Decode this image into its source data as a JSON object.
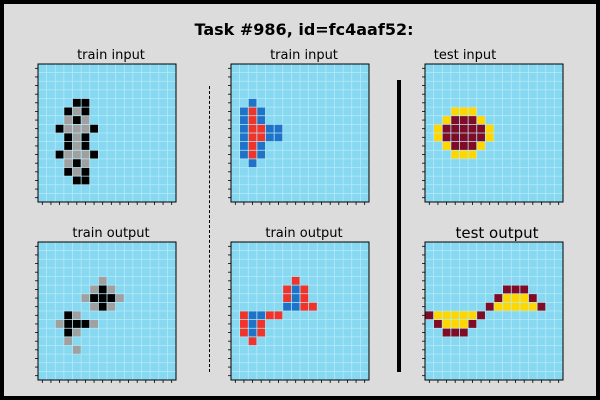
{
  "title": "Task #986, id=fc4aaf52:",
  "colors": {
    "bg": "#87d8f1",
    "gridline": "#b8e9f8",
    "palette": {
      "0": "#87d8f1",
      "1": "#1e73c8",
      "2": "#f0342b",
      "5": "#a0a0a0",
      "8": "#000000",
      "4": "#ffd700",
      "9": "#7f0b27"
    }
  },
  "panels": [
    {
      "label": "train input",
      "size": 16,
      "cells": [
        [
          4,
          4,
          8
        ],
        [
          4,
          5,
          8
        ],
        [
          5,
          3,
          8
        ],
        [
          5,
          4,
          5
        ],
        [
          5,
          5,
          8
        ],
        [
          6,
          3,
          5
        ],
        [
          6,
          4,
          8
        ],
        [
          6,
          5,
          5
        ],
        [
          7,
          2,
          8
        ],
        [
          7,
          3,
          5
        ],
        [
          7,
          4,
          5
        ],
        [
          7,
          5,
          5
        ],
        [
          7,
          6,
          8
        ],
        [
          8,
          3,
          8
        ],
        [
          8,
          4,
          5
        ],
        [
          8,
          5,
          8
        ],
        [
          9,
          3,
          8
        ],
        [
          9,
          4,
          5
        ],
        [
          9,
          5,
          8
        ],
        [
          10,
          2,
          8
        ],
        [
          10,
          3,
          5
        ],
        [
          10,
          4,
          5
        ],
        [
          10,
          5,
          5
        ],
        [
          10,
          6,
          8
        ],
        [
          11,
          3,
          5
        ],
        [
          11,
          4,
          8
        ],
        [
          11,
          5,
          5
        ],
        [
          12,
          3,
          8
        ],
        [
          12,
          4,
          5
        ],
        [
          12,
          5,
          8
        ],
        [
          13,
          4,
          8
        ],
        [
          13,
          5,
          8
        ]
      ]
    },
    {
      "label": "train input",
      "size": 16,
      "cells": [
        [
          4,
          2,
          1
        ],
        [
          5,
          1,
          1
        ],
        [
          5,
          2,
          2
        ],
        [
          5,
          3,
          1
        ],
        [
          6,
          1,
          1
        ],
        [
          6,
          2,
          2
        ],
        [
          6,
          3,
          1
        ],
        [
          7,
          1,
          1
        ],
        [
          7,
          2,
          2
        ],
        [
          7,
          3,
          2
        ],
        [
          7,
          4,
          1
        ],
        [
          7,
          5,
          1
        ],
        [
          8,
          1,
          1
        ],
        [
          8,
          2,
          2
        ],
        [
          8,
          3,
          2
        ],
        [
          8,
          4,
          1
        ],
        [
          8,
          5,
          1
        ],
        [
          9,
          1,
          1
        ],
        [
          9,
          2,
          2
        ],
        [
          9,
          3,
          1
        ],
        [
          10,
          1,
          1
        ],
        [
          10,
          2,
          2
        ],
        [
          10,
          3,
          1
        ],
        [
          11,
          2,
          1
        ]
      ]
    },
    {
      "label": "test input",
      "size": 16,
      "cells": [
        [
          5,
          3,
          4
        ],
        [
          5,
          4,
          4
        ],
        [
          5,
          5,
          4
        ],
        [
          6,
          2,
          4
        ],
        [
          6,
          3,
          9
        ],
        [
          6,
          4,
          9
        ],
        [
          6,
          5,
          9
        ],
        [
          6,
          6,
          4
        ],
        [
          7,
          1,
          4
        ],
        [
          7,
          2,
          9
        ],
        [
          7,
          3,
          9
        ],
        [
          7,
          4,
          9
        ],
        [
          7,
          5,
          9
        ],
        [
          7,
          6,
          9
        ],
        [
          7,
          7,
          4
        ],
        [
          8,
          1,
          4
        ],
        [
          8,
          2,
          9
        ],
        [
          8,
          3,
          9
        ],
        [
          8,
          4,
          9
        ],
        [
          8,
          5,
          9
        ],
        [
          8,
          6,
          9
        ],
        [
          8,
          7,
          4
        ],
        [
          9,
          2,
          4
        ],
        [
          9,
          3,
          9
        ],
        [
          9,
          4,
          9
        ],
        [
          9,
          5,
          9
        ],
        [
          9,
          6,
          4
        ],
        [
          10,
          3,
          4
        ],
        [
          10,
          4,
          4
        ],
        [
          10,
          5,
          4
        ]
      ]
    },
    {
      "label": "train output",
      "size": 16,
      "cells": [
        [
          4,
          7,
          5
        ],
        [
          5,
          6,
          5
        ],
        [
          5,
          7,
          8
        ],
        [
          5,
          8,
          5
        ],
        [
          6,
          5,
          5
        ],
        [
          6,
          6,
          8
        ],
        [
          6,
          7,
          8
        ],
        [
          6,
          8,
          8
        ],
        [
          6,
          9,
          5
        ],
        [
          7,
          6,
          5
        ],
        [
          7,
          7,
          8
        ],
        [
          7,
          8,
          5
        ],
        [
          8,
          3,
          8
        ],
        [
          8,
          4,
          5
        ],
        [
          9,
          2,
          5
        ],
        [
          9,
          3,
          8
        ],
        [
          9,
          4,
          8
        ],
        [
          9,
          5,
          8
        ],
        [
          9,
          6,
          5
        ],
        [
          10,
          3,
          8
        ],
        [
          10,
          4,
          5
        ],
        [
          11,
          3,
          5
        ],
        [
          12,
          4,
          5
        ]
      ]
    },
    {
      "label": "train output",
      "size": 16,
      "cells": [
        [
          4,
          7,
          2
        ],
        [
          5,
          6,
          2
        ],
        [
          5,
          7,
          1
        ],
        [
          5,
          8,
          2
        ],
        [
          6,
          6,
          2
        ],
        [
          6,
          7,
          1
        ],
        [
          6,
          8,
          2
        ],
        [
          7,
          6,
          1
        ],
        [
          7,
          7,
          1
        ],
        [
          7,
          8,
          2
        ],
        [
          7,
          9,
          2
        ],
        [
          8,
          1,
          2
        ],
        [
          8,
          2,
          1
        ],
        [
          8,
          3,
          1
        ],
        [
          8,
          4,
          2
        ],
        [
          8,
          5,
          2
        ],
        [
          9,
          1,
          2
        ],
        [
          9,
          2,
          1
        ],
        [
          9,
          3,
          2
        ],
        [
          10,
          1,
          2
        ],
        [
          10,
          2,
          1
        ],
        [
          10,
          3,
          2
        ],
        [
          11,
          2,
          2
        ]
      ]
    },
    {
      "label": "test output",
      "size": 16,
      "cells": [
        [
          5,
          9,
          9
        ],
        [
          5,
          10,
          9
        ],
        [
          5,
          11,
          9
        ],
        [
          6,
          8,
          9
        ],
        [
          6,
          9,
          4
        ],
        [
          6,
          10,
          4
        ],
        [
          6,
          11,
          4
        ],
        [
          6,
          12,
          9
        ],
        [
          7,
          7,
          9
        ],
        [
          7,
          8,
          4
        ],
        [
          7,
          9,
          4
        ],
        [
          7,
          10,
          4
        ],
        [
          7,
          11,
          4
        ],
        [
          7,
          12,
          4
        ],
        [
          7,
          13,
          9
        ],
        [
          8,
          0,
          9
        ],
        [
          8,
          1,
          4
        ],
        [
          8,
          2,
          4
        ],
        [
          8,
          3,
          4
        ],
        [
          8,
          4,
          4
        ],
        [
          8,
          5,
          4
        ],
        [
          8,
          6,
          9
        ],
        [
          9,
          1,
          9
        ],
        [
          9,
          2,
          4
        ],
        [
          9,
          3,
          4
        ],
        [
          9,
          4,
          4
        ],
        [
          9,
          5,
          9
        ],
        [
          10,
          2,
          9
        ],
        [
          10,
          3,
          9
        ],
        [
          10,
          4,
          9
        ]
      ]
    }
  ]
}
